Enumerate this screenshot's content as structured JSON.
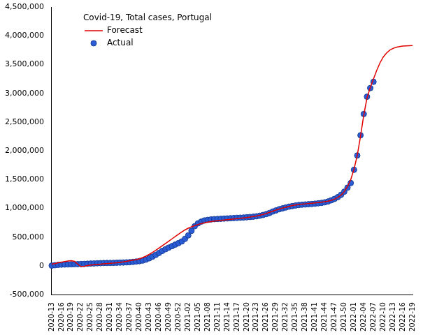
{
  "chart_data": {
    "type": "line",
    "title": "Covid-19, Total cases, Portugal",
    "categories": [
      "2020-13",
      null,
      null,
      "2020-16",
      null,
      null,
      "2020-19",
      null,
      null,
      "2020-22",
      null,
      null,
      "2020-25",
      null,
      null,
      "2020-28",
      null,
      null,
      "2020-31",
      null,
      null,
      "2020-34",
      null,
      null,
      "2020-37",
      null,
      null,
      "2020-40",
      null,
      null,
      "2020-43",
      null,
      null,
      "2020-46",
      null,
      null,
      "2020-49",
      null,
      null,
      "2020-52",
      null,
      null,
      "2021-02",
      null,
      null,
      "2021-05",
      null,
      null,
      "2021-08",
      null,
      null,
      "2021-11",
      null,
      null,
      "2021-14",
      null,
      null,
      "2021-17",
      null,
      null,
      "2021-20",
      null,
      null,
      "2021-23",
      null,
      null,
      "2021-26",
      null,
      null,
      "2021-29",
      null,
      null,
      "2021-32",
      null,
      null,
      "2021-35",
      null,
      null,
      "2021-38",
      null,
      null,
      "2021-41",
      null,
      null,
      "2021-44",
      null,
      null,
      "2021-47",
      null,
      null,
      "2021-50",
      null,
      null,
      "2022-01",
      null,
      null,
      "2022-04",
      null,
      null,
      "2022-07",
      null,
      null,
      "2022-10",
      null,
      null,
      "2022-13",
      null,
      null,
      "2022-16",
      null,
      null,
      "2022-19"
    ],
    "series": [
      {
        "name": "Forecast",
        "color": "#e00000",
        "marker": "none",
        "line_style": "solid",
        "values": [
          30000,
          40000,
          55000,
          65000,
          75000,
          85000,
          90000,
          80000,
          30000,
          -10000,
          -5000,
          5000,
          15000,
          20000,
          25000,
          30000,
          35000,
          40000,
          45000,
          50000,
          55000,
          62000,
          70000,
          80000,
          90000,
          100000,
          110000,
          125000,
          145000,
          170000,
          200000,
          235000,
          270000,
          310000,
          350000,
          390000,
          430000,
          470000,
          510000,
          550000,
          590000,
          625000,
          655000,
          680000,
          700000,
          720000,
          735000,
          748000,
          760000,
          770000,
          778000,
          785000,
          792000,
          798000,
          804000,
          810000,
          816000,
          822000,
          828000,
          834000,
          840000,
          848000,
          858000,
          868000,
          880000,
          895000,
          910000,
          930000,
          950000,
          970000,
          988000,
          1005000,
          1020000,
          1035000,
          1048000,
          1058000,
          1066000,
          1072000,
          1078000,
          1084000,
          1090000,
          1096000,
          1102000,
          1108000,
          1115000,
          1125000,
          1140000,
          1160000,
          1190000,
          1230000,
          1290000,
          1380000,
          1500000,
          1680000,
          1920000,
          2250000,
          2620000,
          2920000,
          3100000,
          3250000,
          3400000,
          3530000,
          3630000,
          3700000,
          3750000,
          3780000,
          3800000,
          3812000,
          3820000,
          3825000,
          3828000,
          3830000
        ]
      },
      {
        "name": "Actual",
        "color": "#2a5cd6",
        "marker": "circle",
        "line_style": "none",
        "values": [
          5000,
          12000,
          18000,
          22000,
          24000,
          26000,
          28000,
          30000,
          31000,
          33000,
          35000,
          38000,
          41000,
          43000,
          46000,
          48000,
          50000,
          51000,
          52000,
          53000,
          55000,
          57000,
          59000,
          62000,
          65000,
          70000,
          76000,
          83000,
          93000,
          109000,
          132000,
          161000,
          191000,
          225000,
          260000,
          290000,
          318000,
          344000,
          370000,
          396000,
          425000,
          470000,
          530000,
          610000,
          690000,
          740000,
          770000,
          790000,
          800000,
          808000,
          813000,
          816000,
          819000,
          822000,
          825000,
          829000,
          832000,
          835000,
          838000,
          841000,
          845000,
          850000,
          855000,
          862000,
          872000,
          885000,
          900000,
          920000,
          945000,
          965000,
          985000,
          1000000,
          1015000,
          1030000,
          1040000,
          1050000,
          1058000,
          1064000,
          1068000,
          1072000,
          1076000,
          1081000,
          1088000,
          1095000,
          1105000,
          1120000,
          1140000,
          1165000,
          1195000,
          1235000,
          1290000,
          1360000,
          1440000,
          1670000,
          1920000,
          2270000,
          2640000,
          2940000,
          3090000,
          3200000,
          null,
          null,
          null,
          null,
          null,
          null,
          null,
          null,
          null,
          null,
          null,
          null
        ]
      }
    ],
    "ylim": [
      -500000,
      4500000
    ],
    "yticks": [
      {
        "value": -500000,
        "label": "-500,000"
      },
      0,
      {
        "value": 500000,
        "label": "500,000"
      },
      {
        "value": 1000000,
        "label": "1,000,000"
      },
      {
        "value": 1500000,
        "label": "1,500,000"
      },
      {
        "value": 2000000,
        "label": "2,000,000"
      },
      {
        "value": 2500000,
        "label": "2,500,000"
      },
      {
        "value": 3000000,
        "label": "3,000,000"
      },
      {
        "value": 3500000,
        "label": "3,500,000"
      },
      {
        "value": 4000000,
        "label": "4,000,000"
      },
      {
        "value": 4500000,
        "label": "4,500,000"
      }
    ],
    "grid": false,
    "legend": "upper left"
  }
}
